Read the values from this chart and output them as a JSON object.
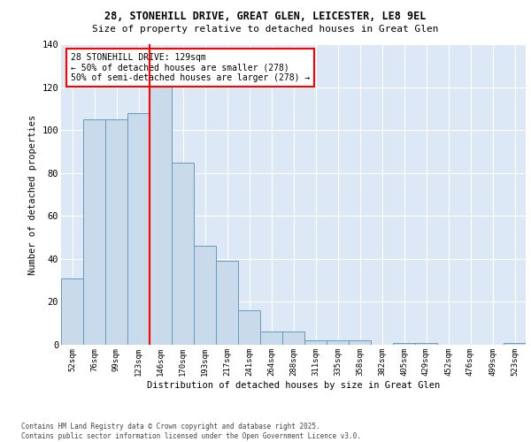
{
  "title_line1": "28, STONEHILL DRIVE, GREAT GLEN, LEICESTER, LE8 9EL",
  "title_line2": "Size of property relative to detached houses in Great Glen",
  "xlabel": "Distribution of detached houses by size in Great Glen",
  "ylabel": "Number of detached properties",
  "categories": [
    "52sqm",
    "76sqm",
    "99sqm",
    "123sqm",
    "146sqm",
    "170sqm",
    "193sqm",
    "217sqm",
    "241sqm",
    "264sqm",
    "288sqm",
    "311sqm",
    "335sqm",
    "358sqm",
    "382sqm",
    "405sqm",
    "429sqm",
    "452sqm",
    "476sqm",
    "499sqm",
    "523sqm"
  ],
  "values": [
    31,
    105,
    105,
    108,
    122,
    85,
    46,
    39,
    16,
    6,
    6,
    2,
    2,
    2,
    0,
    1,
    1,
    0,
    0,
    0,
    1
  ],
  "bar_color": "#c9daea",
  "bar_edge_color": "#6699bb",
  "red_line_x": 3.5,
  "annotation_line1": "28 STONEHILL DRIVE: 129sqm",
  "annotation_line2": "← 50% of detached houses are smaller (278)",
  "annotation_line3": "50% of semi-detached houses are larger (278) →",
  "ylim": [
    0,
    140
  ],
  "yticks": [
    0,
    20,
    40,
    60,
    80,
    100,
    120,
    140
  ],
  "bg_color": "#dce8f5",
  "footer_line1": "Contains HM Land Registry data © Crown copyright and database right 2025.",
  "footer_line2": "Contains public sector information licensed under the Open Government Licence v3.0."
}
